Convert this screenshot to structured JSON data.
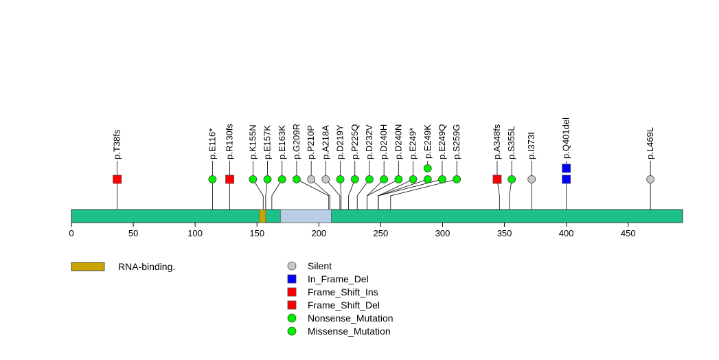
{
  "chart_data": {
    "type": "lollipop",
    "protein_length": 494,
    "x_ticks": [
      0,
      50,
      100,
      150,
      200,
      250,
      300,
      350,
      400,
      450
    ],
    "domains": [
      {
        "name": "RNA-binding.",
        "start": 152,
        "end": 157,
        "color": "#c8a400"
      },
      {
        "name": "",
        "start": 169,
        "end": 210,
        "color": "#b9cde5"
      }
    ],
    "backbone_color": "#1dbf8b",
    "mutations": [
      {
        "label": "p.T38fs",
        "pos": 37,
        "type": "Frame_Shift_Del",
        "count": 1
      },
      {
        "label": "p.E116*",
        "pos": 114,
        "type": "Nonsense_Mutation",
        "count": 1
      },
      {
        "label": "p.R130fs",
        "pos": 128,
        "type": "Frame_Shift_Ins",
        "count": 1
      },
      {
        "label": "p.K155N",
        "pos": 155,
        "type": "Missense_Mutation",
        "count": 1
      },
      {
        "label": "p.E157K",
        "pos": 157,
        "type": "Missense_Mutation",
        "count": 1
      },
      {
        "label": "p.E163K",
        "pos": 162,
        "type": "Missense_Mutation",
        "count": 1
      },
      {
        "label": "p.G209R",
        "pos": 208,
        "type": "Missense_Mutation",
        "count": 1
      },
      {
        "label": "p.P210P",
        "pos": 209,
        "type": "Silent",
        "count": 1
      },
      {
        "label": "p.A218A",
        "pos": 217,
        "type": "Silent",
        "count": 1
      },
      {
        "label": "p.D219Y",
        "pos": 218,
        "type": "Missense_Mutation",
        "count": 1
      },
      {
        "label": "p.P225Q",
        "pos": 224,
        "type": "Missense_Mutation",
        "count": 1
      },
      {
        "label": "p.D232V",
        "pos": 231,
        "type": "Missense_Mutation",
        "count": 1
      },
      {
        "label": "p.D240H",
        "pos": 239,
        "type": "Missense_Mutation",
        "count": 1
      },
      {
        "label": "p.D240N",
        "pos": 239,
        "type": "Missense_Mutation",
        "count": 1
      },
      {
        "label": "p.E249*",
        "pos": 248,
        "type": "Nonsense_Mutation",
        "count": 1
      },
      {
        "label": "p.E249K",
        "pos": 248,
        "type": "Missense_Mutation",
        "count": 2
      },
      {
        "label": "p.E249Q",
        "pos": 248,
        "type": "Missense_Mutation",
        "count": 1
      },
      {
        "label": "p.S259G",
        "pos": 258,
        "type": "Missense_Mutation",
        "count": 1
      },
      {
        "label": "p.A348fs",
        "pos": 346,
        "type": "Frame_Shift_Del",
        "count": 1
      },
      {
        "label": "p.S355L",
        "pos": 354,
        "type": "Missense_Mutation",
        "count": 1
      },
      {
        "label": "p.I373I",
        "pos": 372,
        "type": "Silent",
        "count": 1
      },
      {
        "label": "p.Q401del",
        "pos": 400,
        "type": "In_Frame_Del",
        "count": 2
      },
      {
        "label": "p.L469L",
        "pos": 468,
        "type": "Silent",
        "count": 1
      }
    ],
    "legend": [
      {
        "label": "Silent",
        "shape": "circle",
        "color": "#c8c8c8"
      },
      {
        "label": "In_Frame_Del",
        "shape": "square",
        "color": "#0000ff"
      },
      {
        "label": "Frame_Shift_Ins",
        "shape": "square",
        "color": "#ff0000"
      },
      {
        "label": "Frame_Shift_Del",
        "shape": "square",
        "color": "#ff0000"
      },
      {
        "label": "Nonsense_Mutation",
        "shape": "circle",
        "color": "#00ee00"
      },
      {
        "label": "Missense_Mutation",
        "shape": "circle",
        "color": "#00ee00"
      }
    ],
    "domain_legend": [
      {
        "label": "RNA-binding.",
        "color": "#c8a400"
      }
    ]
  }
}
